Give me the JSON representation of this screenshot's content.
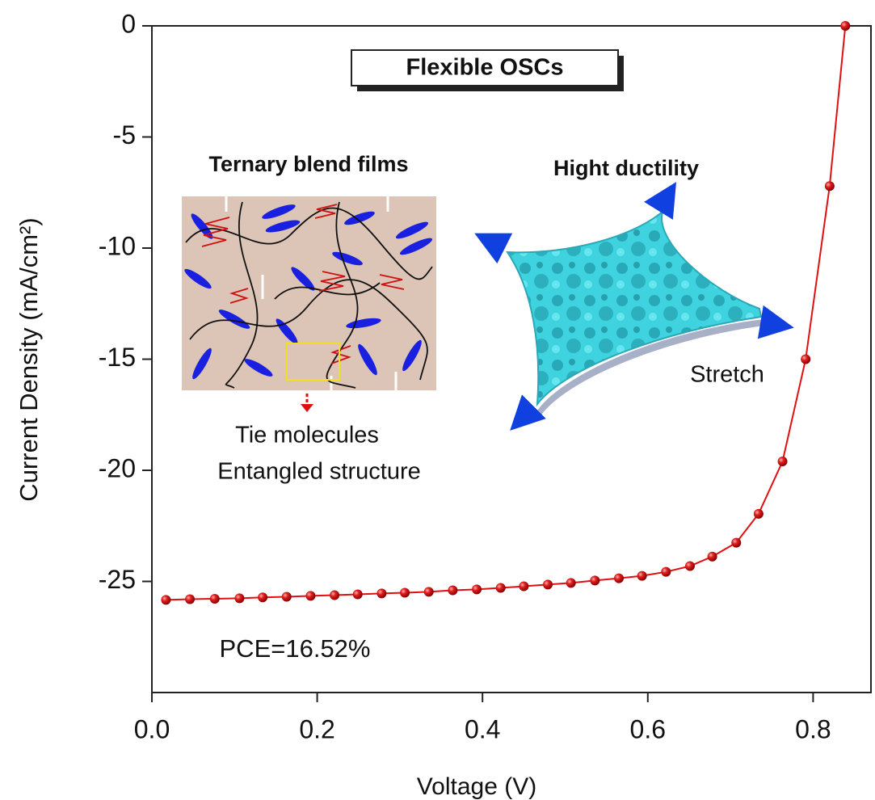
{
  "chart_data": {
    "type": "line",
    "xlabel": "Voltage (V)",
    "ylabel": "Current Density (mA/cm²)",
    "xlim": [
      0,
      0.87
    ],
    "ylim": [
      -30,
      0
    ],
    "xticks": [
      {
        "value": 0,
        "label": "0.0"
      },
      0.2,
      0.4,
      0.6,
      0.8
    ],
    "yticks": [
      0,
      -5,
      -10,
      -15,
      -20,
      -25
    ],
    "series": [
      {
        "color": "#e01010",
        "x": [
          0.017,
          0.046,
          0.076,
          0.106,
          0.134,
          0.163,
          0.192,
          0.221,
          0.249,
          0.278,
          0.306,
          0.335,
          0.364,
          0.393,
          0.422,
          0.45,
          0.479,
          0.507,
          0.536,
          0.565,
          0.593,
          0.622,
          0.651,
          0.678,
          0.707,
          0.734,
          0.763,
          0.791,
          0.82,
          0.839
        ],
        "values": [
          -25.83,
          -25.8,
          -25.78,
          -25.76,
          -25.72,
          -25.69,
          -25.65,
          -25.62,
          -25.58,
          -25.54,
          -25.51,
          -25.47,
          -25.4,
          -25.36,
          -25.29,
          -25.22,
          -25.14,
          -25.07,
          -24.96,
          -24.86,
          -24.75,
          -24.57,
          -24.31,
          -23.88,
          -23.26,
          -21.96,
          -19.6,
          -15.0,
          -7.21,
          0
        ]
      }
    ],
    "annotations": [
      "Flexible OSCs",
      "Ternary blend films",
      "Hight ductility",
      "Tie molecules",
      "Entangled structure",
      "Stretch",
      "PCE=16.52%"
    ]
  }
}
